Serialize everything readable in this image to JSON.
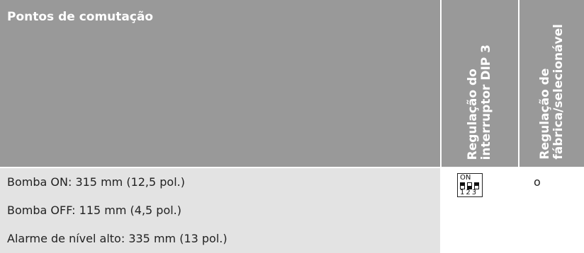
{
  "header": {
    "col1": "Pontos de comutação",
    "col2_line1": "Regulação do",
    "col2_line2": "interruptor DIP 3",
    "col3_line1": "Regulação de",
    "col3_line2": "fábrica/selecionável"
  },
  "rows": [
    "Bomba ON: 315 mm (12,5 pol.)",
    "Bomba OFF: 115 mm (4,5 pol.)",
    "Alarme de nível alto: 335 mm (13 pol.)"
  ],
  "dip_switch": {
    "label": "ON",
    "numbers": "123",
    "switches_on": [
      true,
      false,
      true
    ]
  },
  "factory_mark": "o",
  "colors": {
    "header_bg": "#999999",
    "body_bg": "#e3e3e3"
  }
}
